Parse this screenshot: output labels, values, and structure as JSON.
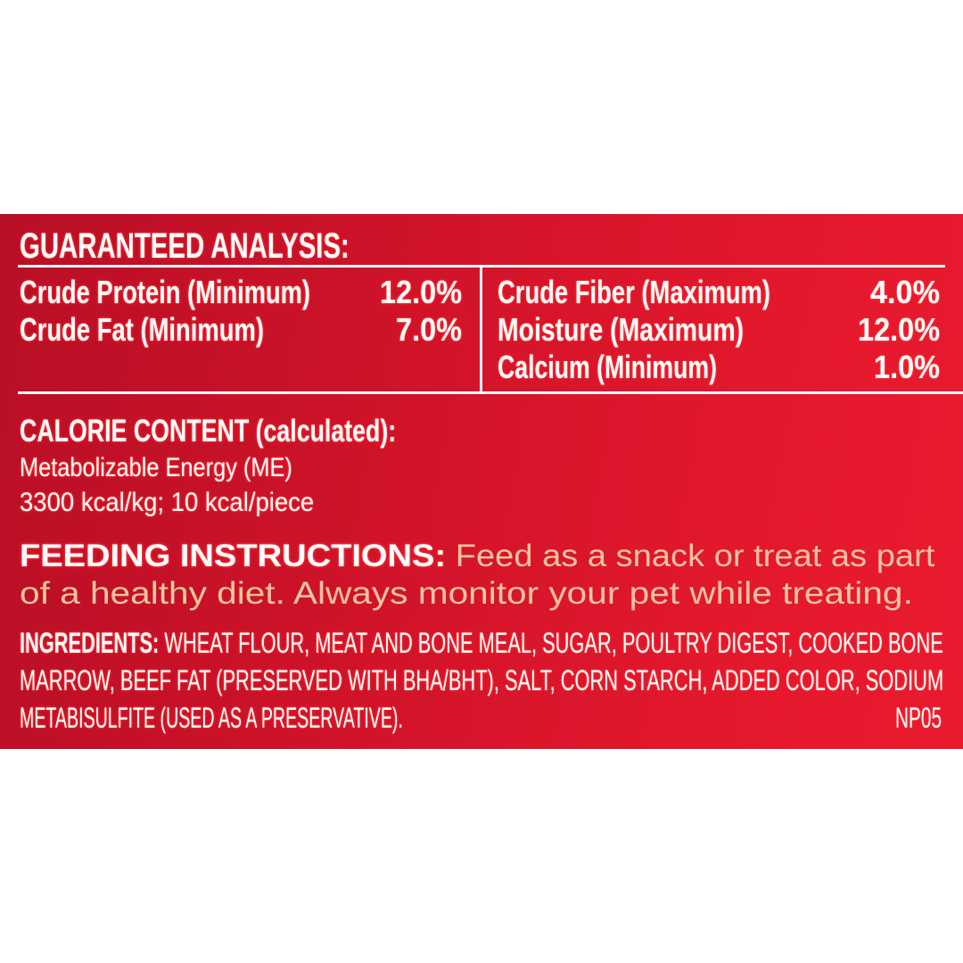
{
  "guaranteed_analysis": {
    "title": "GUARANTEED ANALYSIS:",
    "left": [
      {
        "label": "Crude Protein (Minimum)",
        "value": "12.0%"
      },
      {
        "label": "Crude Fat (Minimum)",
        "value": "7.0%"
      }
    ],
    "right": [
      {
        "label": "Crude Fiber (Maximum)",
        "value": "4.0%"
      },
      {
        "label": "Moisture (Maximum)",
        "value": "12.0%"
      },
      {
        "label": "Calcium (Minimum)",
        "value": "1.0%"
      }
    ]
  },
  "calorie_content": {
    "title": "CALORIE CONTENT (calculated):",
    "line1": "Metabolizable Energy (ME)",
    "line2": "3300 kcal/kg; 10 kcal/piece"
  },
  "feeding": {
    "label": "FEEDING INSTRUCTIONS:",
    "line1": "Feed as a snack or treat as part",
    "line2": "of a healthy diet. Always monitor your pet while treating."
  },
  "ingredients": {
    "label": "INGREDIENTS:",
    "lines": [
      "WHEAT FLOUR, MEAT AND BONE MEAL, SUGAR, POULTRY DIGEST, COOKED BONE",
      "MARROW, BEEF FAT (PRESERVED WITH BHA/BHT), SALT, CORN STARCH, ADDED COLOR, SODIUM",
      "METABISULFITE (USED AS A PRESERVATIVE)."
    ],
    "code": "NP05"
  },
  "colors": {
    "panel": "#d41429",
    "text": "#ffffff",
    "feeding_text": "#f6c49c"
  }
}
